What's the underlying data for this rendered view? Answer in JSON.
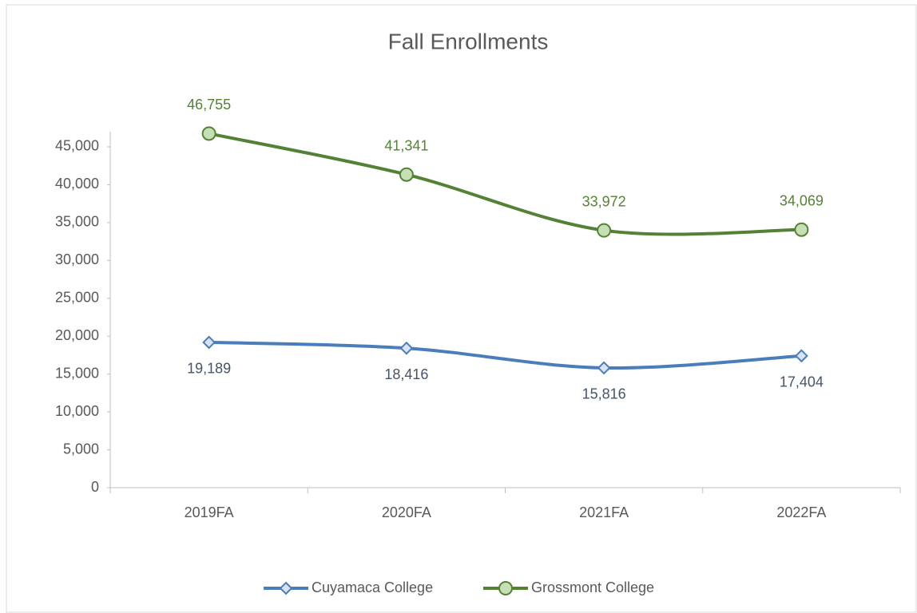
{
  "chart_data": {
    "type": "line",
    "title": "Fall Enrollments",
    "categories": [
      "2019FA",
      "2020FA",
      "2021FA",
      "2022FA"
    ],
    "series": [
      {
        "name": "Cuyamaca College",
        "color": "#4a7ebb",
        "marker": "diamond",
        "values": [
          19189,
          18416,
          15816,
          17404
        ],
        "value_labels": [
          "19,189",
          "18,416",
          "15,816",
          "17,404"
        ],
        "label_color": "#44546a"
      },
      {
        "name": "Grossmont College",
        "color": "#548235",
        "marker": "circle",
        "values": [
          46755,
          41341,
          33972,
          34069
        ],
        "value_labels": [
          "46,755",
          "41,341",
          "33,972",
          "34,069"
        ],
        "label_color": "#548235"
      }
    ],
    "ylim": [
      0,
      47000
    ],
    "yticks": [
      0,
      {
        "value": 5000,
        "label": "5,000"
      },
      {
        "value": 10000,
        "label": "10,000"
      },
      {
        "value": 15000,
        "label": "15,000"
      },
      {
        "value": 20000,
        "label": "20,000"
      },
      {
        "value": 25000,
        "label": "25,000"
      },
      {
        "value": 30000,
        "label": "30,000"
      },
      {
        "value": 35000,
        "label": "35,000"
      },
      {
        "value": 40000,
        "label": "40,000"
      },
      {
        "value": 45000,
        "label": "45,000"
      }
    ],
    "grid": false,
    "smooth": true,
    "legend": "bottom"
  }
}
